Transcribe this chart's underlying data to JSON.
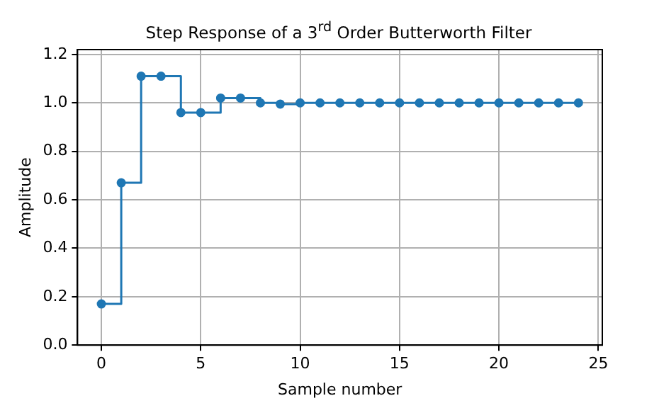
{
  "chart_data": {
    "type": "step",
    "title": "Step Response of a 3$^{rd}$ Order Butterworth Filter",
    "xlabel": "Sample number",
    "ylabel": "Amplitude",
    "x": [
      0,
      1,
      2,
      3,
      4,
      5,
      6,
      7,
      8,
      9,
      10,
      11,
      12,
      13,
      14,
      15,
      16,
      17,
      18,
      19,
      20,
      21,
      22,
      23,
      24
    ],
    "series": [
      {
        "color": "#1f77b4",
        "values": [
          0.17,
          0.67,
          1.11,
          1.11,
          0.96,
          0.96,
          1.02,
          1.02,
          1.0,
          0.995,
          1.0,
          1.0,
          1.0,
          1.0,
          1.0,
          1.0,
          1.0,
          1.0,
          1.0,
          1.0,
          1.0,
          1.0,
          1.0,
          1.0,
          1.0
        ]
      }
    ],
    "xlim": [
      -1.2,
      25.2
    ],
    "xticks": [
      0,
      5,
      10,
      15,
      20,
      25
    ],
    "ylim": [
      0,
      1.22
    ],
    "yticks": [
      {
        "value": 0,
        "label": "0.0"
      },
      {
        "value": 0.2,
        "label": "0.2"
      },
      {
        "value": 0.4,
        "label": "0.4"
      },
      {
        "value": 0.6,
        "label": "0.6"
      },
      {
        "value": 0.8,
        "label": "0.8"
      },
      {
        "value": 1,
        "label": "1.0"
      },
      {
        "value": 1.2,
        "label": "1.2"
      }
    ],
    "grid": true,
    "marker": "circle",
    "line_style": "solid",
    "legend": false
  }
}
